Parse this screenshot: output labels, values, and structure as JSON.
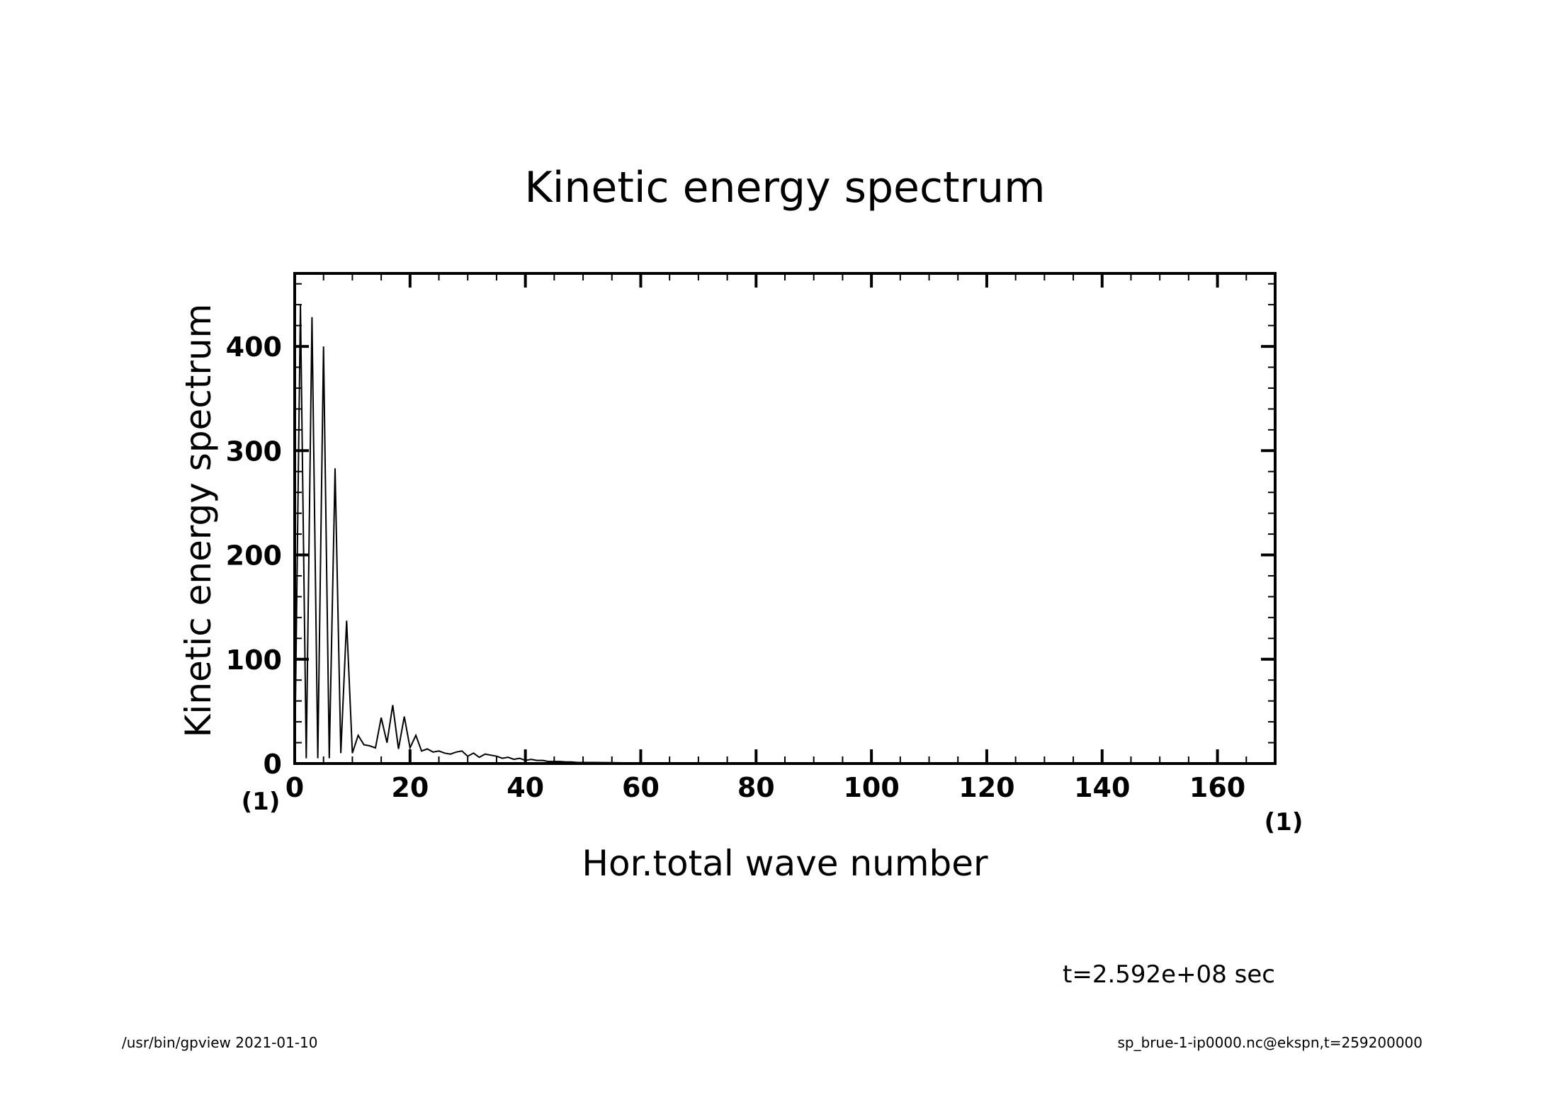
{
  "page": {
    "time_label": "t=2.592e+08 sec",
    "footer_left": "/usr/bin/gpview   2021-01-10",
    "footer_right": "sp_brue-1-ip0000.nc@ekspn,t=259200000"
  },
  "chart_data": {
    "type": "line",
    "title": "Kinetic energy spectrum",
    "xlabel": "Hor.total wave number",
    "ylabel": "Kinetic energy spectrum",
    "x_unit": "(1)",
    "y_unit": "(1)",
    "xlim": [
      0,
      170
    ],
    "ylim": [
      0,
      470
    ],
    "x_ticks": [
      0,
      20,
      40,
      60,
      80,
      100,
      120,
      140,
      160
    ],
    "y_ticks": [
      0,
      100,
      200,
      300,
      400
    ],
    "grid": false,
    "line_color": "#000000",
    "x": [
      0,
      1,
      2,
      3,
      4,
      5,
      6,
      7,
      8,
      9,
      10,
      11,
      12,
      13,
      14,
      15,
      16,
      17,
      18,
      19,
      20,
      21,
      22,
      23,
      24,
      25,
      26,
      27,
      28,
      29,
      30,
      31,
      32,
      33,
      34,
      35,
      36,
      37,
      38,
      39,
      40,
      41,
      42,
      43,
      44,
      45,
      46,
      47,
      48,
      49,
      50,
      52,
      55,
      60,
      65,
      70,
      80,
      90,
      100,
      120,
      140,
      160,
      170
    ],
    "values": [
      0,
      440,
      5,
      428,
      5,
      400,
      5,
      283,
      10,
      137,
      10,
      27,
      18,
      17,
      15,
      44,
      20,
      56,
      14,
      45,
      15,
      27,
      12,
      14,
      11,
      12,
      10,
      9,
      11,
      12,
      7,
      10,
      6,
      9,
      8,
      7,
      5,
      6,
      4,
      5,
      3,
      4,
      3,
      3,
      2,
      2,
      2,
      1.5,
      1.5,
      1,
      1,
      1,
      0.8,
      0.5,
      0.3,
      0.2,
      0.1,
      0.1,
      0.05,
      0.02,
      0.01,
      0.01,
      0
    ]
  }
}
